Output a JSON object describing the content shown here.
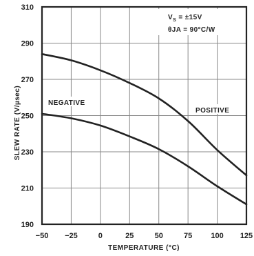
{
  "chart_data": {
    "type": "line",
    "xlabel": "TEMPERATURE (°C)",
    "ylabel": "SLEW RATE (V/µsec)",
    "xlim": [
      -50,
      125
    ],
    "ylim": [
      190,
      310
    ],
    "x_ticks": [
      "−50",
      "−25",
      "0",
      "25",
      "50",
      "75",
      "100",
      "125"
    ],
    "x_tick_values": [
      -50,
      -25,
      0,
      25,
      50,
      75,
      100,
      125
    ],
    "y_ticks": [
      "190",
      "210",
      "230",
      "250",
      "270",
      "290",
      "310"
    ],
    "y_tick_values": [
      190,
      210,
      230,
      250,
      270,
      290,
      310
    ],
    "grid": true,
    "annotations": {
      "vs_prefix": "V",
      "vs_sub": "S",
      "vs_value": " = ±15V",
      "theta": "θJA = 90°C/W"
    },
    "series": [
      {
        "name": "NEGATIVE",
        "x": [
          -50,
          -25,
          0,
          25,
          50,
          75,
          100,
          125
        ],
        "y": [
          284,
          280.5,
          275,
          268,
          259.5,
          247,
          231,
          217
        ]
      },
      {
        "name": "POSITIVE",
        "x": [
          -50,
          -25,
          0,
          25,
          50,
          75,
          100,
          125
        ],
        "y": [
          251,
          248.5,
          244.5,
          238.5,
          231.5,
          222,
          211,
          201
        ]
      }
    ]
  }
}
